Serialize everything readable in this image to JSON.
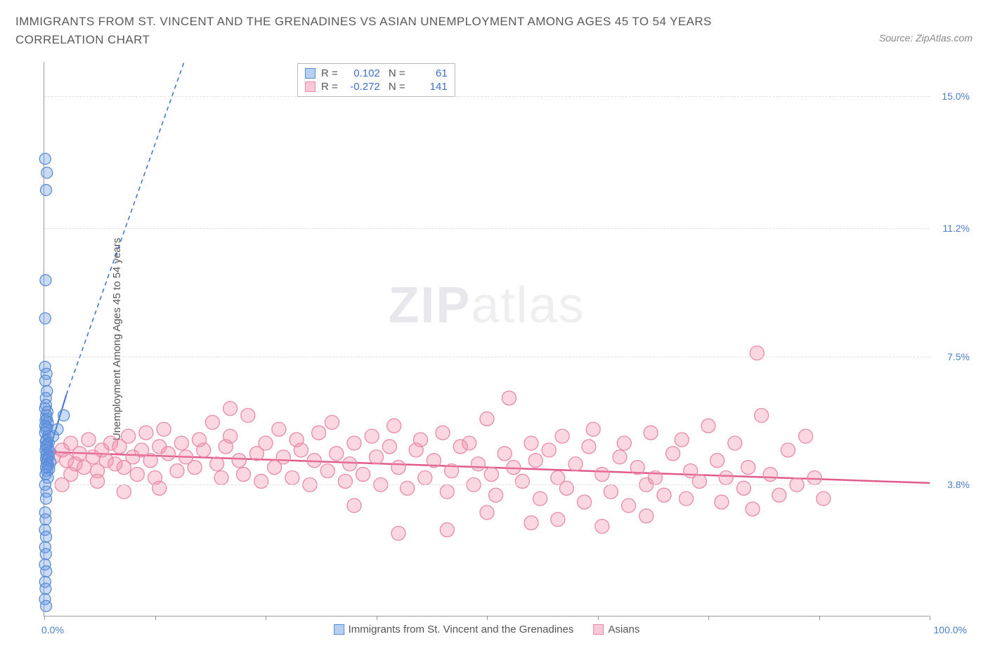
{
  "header": {
    "title": "IMMIGRANTS FROM ST. VINCENT AND THE GRENADINES VS ASIAN UNEMPLOYMENT AMONG AGES 45 TO 54 YEARS CORRELATION CHART",
    "source": "Source: ZipAtlas.com"
  },
  "watermark": {
    "part1": "ZIP",
    "part2": "atlas"
  },
  "chart": {
    "type": "scatter",
    "background_color": "#ffffff",
    "grid_color": "#e0e0e0",
    "axis_color": "#999999",
    "tick_label_color": "#4a7ec9",
    "y_axis_label": "Unemployment Among Ages 45 to 54 years",
    "xlim": [
      0,
      100
    ],
    "ylim": [
      0,
      16
    ],
    "x_ticks": [
      0,
      12.5,
      25,
      37.5,
      50,
      62.5,
      75,
      87.5,
      100
    ],
    "x_tick_labels": {
      "0": "0.0%",
      "100": "100.0%"
    },
    "y_gridlines": [
      3.8,
      7.5,
      11.2,
      15.0
    ],
    "y_tick_labels": [
      "3.8%",
      "7.5%",
      "11.2%",
      "15.0%"
    ],
    "label_fontsize": 15,
    "tick_fontsize": 14,
    "series": [
      {
        "id": "blue",
        "label": "Immigrants from St. Vincent and the Grenadines",
        "color_fill": "rgba(102,153,230,0.35)",
        "color_stroke": "#5a8cd6",
        "swatch_fill": "#b8d0f0",
        "swatch_border": "#5a8cd6",
        "marker_radius": 8,
        "R": "0.102",
        "N": "61",
        "trend": {
          "x1": 0,
          "y1": 4.3,
          "x2": 2.5,
          "y2": 6.4,
          "dash_x2": 15.8,
          "dash_y2": 16,
          "color": "#3e6fc9",
          "width": 2
        },
        "points": [
          [
            0.1,
            13.2
          ],
          [
            0.3,
            12.8
          ],
          [
            0.2,
            12.3
          ],
          [
            0.15,
            9.7
          ],
          [
            0.1,
            8.6
          ],
          [
            0.08,
            7.2
          ],
          [
            0.25,
            7.0
          ],
          [
            0.12,
            6.8
          ],
          [
            0.3,
            6.5
          ],
          [
            0.18,
            6.3
          ],
          [
            0.2,
            6.1
          ],
          [
            0.1,
            6.0
          ],
          [
            0.35,
            5.9
          ],
          [
            0.22,
            5.8
          ],
          [
            0.28,
            5.7
          ],
          [
            0.15,
            5.65
          ],
          [
            0.4,
            5.6
          ],
          [
            0.12,
            5.5
          ],
          [
            0.3,
            5.45
          ],
          [
            0.2,
            5.4
          ],
          [
            0.1,
            5.3
          ],
          [
            0.45,
            5.2
          ],
          [
            0.25,
            5.1
          ],
          [
            0.18,
            5.05
          ],
          [
            0.5,
            5.0
          ],
          [
            0.32,
            4.95
          ],
          [
            0.2,
            4.9
          ],
          [
            0.4,
            4.85
          ],
          [
            0.15,
            4.8
          ],
          [
            0.6,
            4.75
          ],
          [
            0.3,
            4.7
          ],
          [
            0.25,
            4.65
          ],
          [
            0.5,
            4.6
          ],
          [
            0.2,
            4.55
          ],
          [
            0.35,
            4.5
          ],
          [
            0.7,
            4.45
          ],
          [
            0.28,
            4.4
          ],
          [
            0.45,
            4.35
          ],
          [
            0.2,
            4.3
          ],
          [
            0.55,
            4.25
          ],
          [
            0.3,
            4.2
          ],
          [
            0.15,
            4.1
          ],
          [
            0.4,
            4.0
          ],
          [
            0.1,
            3.8
          ],
          [
            0.25,
            3.6
          ],
          [
            0.2,
            3.4
          ],
          [
            0.1,
            3.0
          ],
          [
            0.15,
            2.8
          ],
          [
            0.08,
            2.5
          ],
          [
            0.2,
            2.3
          ],
          [
            0.1,
            2.0
          ],
          [
            0.18,
            1.8
          ],
          [
            0.08,
            1.5
          ],
          [
            0.22,
            1.3
          ],
          [
            0.1,
            1.0
          ],
          [
            0.15,
            0.8
          ],
          [
            0.08,
            0.5
          ],
          [
            0.2,
            0.3
          ],
          [
            1.0,
            5.2
          ],
          [
            1.5,
            5.4
          ],
          [
            2.2,
            5.8
          ]
        ]
      },
      {
        "id": "pink",
        "label": "Asians",
        "color_fill": "rgba(240,140,170,0.35)",
        "color_stroke": "#e88aa8",
        "swatch_fill": "#f8c8d8",
        "swatch_border": "#e88aa8",
        "marker_radius": 10,
        "R": "-0.272",
        "N": "141",
        "trend": {
          "x1": 0,
          "y1": 4.75,
          "x2": 100,
          "y2": 3.85,
          "color": "#e05a8c",
          "width": 2.5
        },
        "points": [
          [
            1,
            4.6
          ],
          [
            2,
            4.8
          ],
          [
            2.5,
            4.5
          ],
          [
            3,
            5.0
          ],
          [
            3.5,
            4.4
          ],
          [
            4,
            4.7
          ],
          [
            4.5,
            4.3
          ],
          [
            5,
            5.1
          ],
          [
            5.5,
            4.6
          ],
          [
            6,
            4.2
          ],
          [
            6.5,
            4.8
          ],
          [
            7,
            4.5
          ],
          [
            7.5,
            5.0
          ],
          [
            8,
            4.4
          ],
          [
            8.5,
            4.9
          ],
          [
            9,
            4.3
          ],
          [
            9.5,
            5.2
          ],
          [
            10,
            4.6
          ],
          [
            10.5,
            4.1
          ],
          [
            11,
            4.8
          ],
          [
            11.5,
            5.3
          ],
          [
            12,
            4.5
          ],
          [
            12.5,
            4.0
          ],
          [
            13,
            4.9
          ],
          [
            13.5,
            5.4
          ],
          [
            14,
            4.7
          ],
          [
            15,
            4.2
          ],
          [
            15.5,
            5.0
          ],
          [
            16,
            4.6
          ],
          [
            17,
            4.3
          ],
          [
            17.5,
            5.1
          ],
          [
            18,
            4.8
          ],
          [
            19,
            5.6
          ],
          [
            19.5,
            4.4
          ],
          [
            20,
            4.0
          ],
          [
            20.5,
            4.9
          ],
          [
            21,
            5.2
          ],
          [
            22,
            4.5
          ],
          [
            22.5,
            4.1
          ],
          [
            23,
            5.8
          ],
          [
            24,
            4.7
          ],
          [
            24.5,
            3.9
          ],
          [
            25,
            5.0
          ],
          [
            26,
            4.3
          ],
          [
            26.5,
            5.4
          ],
          [
            27,
            4.6
          ],
          [
            28,
            4.0
          ],
          [
            28.5,
            5.1
          ],
          [
            29,
            4.8
          ],
          [
            30,
            3.8
          ],
          [
            30.5,
            4.5
          ],
          [
            31,
            5.3
          ],
          [
            32,
            4.2
          ],
          [
            32.5,
            5.6
          ],
          [
            33,
            4.7
          ],
          [
            34,
            3.9
          ],
          [
            34.5,
            4.4
          ],
          [
            35,
            5.0
          ],
          [
            36,
            4.1
          ],
          [
            37,
            5.2
          ],
          [
            37.5,
            4.6
          ],
          [
            38,
            3.8
          ],
          [
            39,
            4.9
          ],
          [
            39.5,
            5.5
          ],
          [
            40,
            4.3
          ],
          [
            41,
            3.7
          ],
          [
            42,
            4.8
          ],
          [
            42.5,
            5.1
          ],
          [
            43,
            4.0
          ],
          [
            44,
            4.5
          ],
          [
            45,
            5.3
          ],
          [
            45.5,
            3.6
          ],
          [
            46,
            4.2
          ],
          [
            47,
            4.9
          ],
          [
            48,
            5.0
          ],
          [
            48.5,
            3.8
          ],
          [
            49,
            4.4
          ],
          [
            50,
            5.7
          ],
          [
            50.5,
            4.1
          ],
          [
            51,
            3.5
          ],
          [
            52,
            4.7
          ],
          [
            52.5,
            6.3
          ],
          [
            53,
            4.3
          ],
          [
            54,
            3.9
          ],
          [
            55,
            5.0
          ],
          [
            55.5,
            4.5
          ],
          [
            56,
            3.4
          ],
          [
            57,
            4.8
          ],
          [
            58,
            4.0
          ],
          [
            58.5,
            5.2
          ],
          [
            59,
            3.7
          ],
          [
            60,
            4.4
          ],
          [
            61,
            3.3
          ],
          [
            61.5,
            4.9
          ],
          [
            62,
            5.4
          ],
          [
            63,
            4.1
          ],
          [
            64,
            3.6
          ],
          [
            65,
            4.6
          ],
          [
            65.5,
            5.0
          ],
          [
            66,
            3.2
          ],
          [
            67,
            4.3
          ],
          [
            68,
            3.8
          ],
          [
            68.5,
            5.3
          ],
          [
            69,
            4.0
          ],
          [
            70,
            3.5
          ],
          [
            71,
            4.7
          ],
          [
            72,
            5.1
          ],
          [
            72.5,
            3.4
          ],
          [
            73,
            4.2
          ],
          [
            74,
            3.9
          ],
          [
            75,
            5.5
          ],
          [
            76,
            4.5
          ],
          [
            76.5,
            3.3
          ],
          [
            77,
            4.0
          ],
          [
            78,
            5.0
          ],
          [
            79,
            3.7
          ],
          [
            79.5,
            4.3
          ],
          [
            80,
            3.1
          ],
          [
            81,
            5.8
          ],
          [
            82,
            4.1
          ],
          [
            83,
            3.5
          ],
          [
            84,
            4.8
          ],
          [
            85,
            3.8
          ],
          [
            86,
            5.2
          ],
          [
            87,
            4.0
          ],
          [
            88,
            3.4
          ],
          [
            80.5,
            7.6
          ],
          [
            45.5,
            2.5
          ],
          [
            58,
            2.8
          ],
          [
            63,
            2.6
          ],
          [
            68,
            2.9
          ],
          [
            35,
            3.2
          ],
          [
            40,
            2.4
          ],
          [
            50,
            3.0
          ],
          [
            55,
            2.7
          ],
          [
            21,
            6.0
          ],
          [
            13,
            3.7
          ],
          [
            9,
            3.6
          ],
          [
            6,
            3.9
          ],
          [
            3,
            4.1
          ],
          [
            2,
            3.8
          ]
        ]
      }
    ],
    "stats_value_color": "#3e6fc9"
  }
}
